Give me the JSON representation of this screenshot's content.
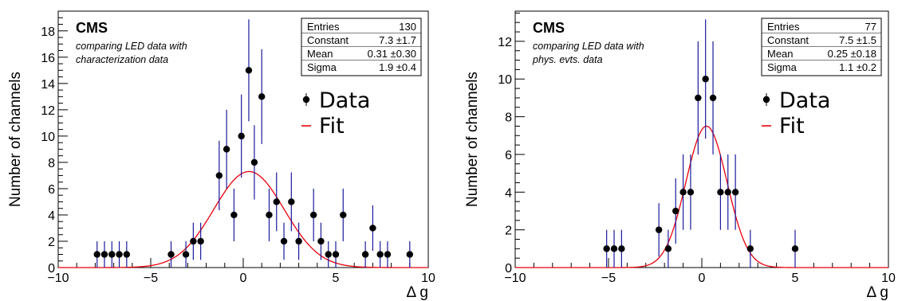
{
  "chart_data": [
    {
      "type": "scatter",
      "xlabel": "Δ g",
      "ylabel": "Number of channels",
      "xlim": [
        -10,
        10
      ],
      "ylim": [
        0,
        19.5
      ],
      "xticks": [
        -10,
        -5,
        0,
        5,
        10
      ],
      "yticks": [
        0,
        2,
        4,
        6,
        8,
        10,
        12,
        14,
        16,
        18
      ],
      "experiment": "CMS",
      "subtitle_lines": [
        "comparing LED data with",
        "characterization data"
      ],
      "stats": [
        {
          "label": "Entries",
          "value": "130"
        },
        {
          "label": "Constant",
          "value": "7.3 ±1.7"
        },
        {
          "label": "Mean",
          "value": "0.31 ±0.30"
        },
        {
          "label": "Sigma",
          "value": "1.9 ±0.4"
        }
      ],
      "legend": [
        "Data",
        "Fit"
      ],
      "colors": {
        "data": "#000000",
        "error": "#1a1a9e",
        "fit": "#e8000b"
      },
      "fit": {
        "constant": 7.3,
        "mean": 0.31,
        "sigma": 1.9
      },
      "points": [
        {
          "x": -7.9,
          "y": 1
        },
        {
          "x": -7.5,
          "y": 1
        },
        {
          "x": -7.1,
          "y": 1
        },
        {
          "x": -6.7,
          "y": 1
        },
        {
          "x": -6.3,
          "y": 1
        },
        {
          "x": -3.9,
          "y": 1
        },
        {
          "x": -3.1,
          "y": 1
        },
        {
          "x": -2.7,
          "y": 2
        },
        {
          "x": -2.3,
          "y": 2
        },
        {
          "x": -1.3,
          "y": 7
        },
        {
          "x": -0.9,
          "y": 9
        },
        {
          "x": -0.5,
          "y": 4
        },
        {
          "x": -0.1,
          "y": 10
        },
        {
          "x": 0.3,
          "y": 15
        },
        {
          "x": 0.6,
          "y": 8
        },
        {
          "x": 1.0,
          "y": 13
        },
        {
          "x": 1.4,
          "y": 4
        },
        {
          "x": 1.8,
          "y": 5
        },
        {
          "x": 2.2,
          "y": 2
        },
        {
          "x": 2.6,
          "y": 5
        },
        {
          "x": 3.0,
          "y": 2
        },
        {
          "x": 3.8,
          "y": 4
        },
        {
          "x": 4.2,
          "y": 2
        },
        {
          "x": 4.6,
          "y": 1
        },
        {
          "x": 5.0,
          "y": 1
        },
        {
          "x": 5.4,
          "y": 4
        },
        {
          "x": 6.6,
          "y": 1
        },
        {
          "x": 7.0,
          "y": 3
        },
        {
          "x": 7.4,
          "y": 1
        },
        {
          "x": 7.8,
          "y": 1
        },
        {
          "x": 9.0,
          "y": 1
        }
      ]
    },
    {
      "type": "scatter",
      "xlabel": "Δ g",
      "ylabel": "Number of channels",
      "xlim": [
        -10,
        10
      ],
      "ylim": [
        0,
        13.6
      ],
      "xticks": [
        -10,
        -5,
        0,
        5,
        10
      ],
      "yticks": [
        0,
        2,
        4,
        6,
        8,
        10,
        12
      ],
      "experiment": "CMS",
      "subtitle_lines": [
        "comparing LED data with",
        "phys. evts. data"
      ],
      "stats": [
        {
          "label": "Entries",
          "value": "77"
        },
        {
          "label": "Constant",
          "value": "7.5 ±1.5"
        },
        {
          "label": "Mean",
          "value": "0.25 ±0.18"
        },
        {
          "label": "Sigma",
          "value": "1.1 ±0.2"
        }
      ],
      "legend": [
        "Data",
        "Fit"
      ],
      "colors": {
        "data": "#000000",
        "error": "#1a1a9e",
        "fit": "#e8000b"
      },
      "fit": {
        "constant": 7.5,
        "mean": 0.25,
        "sigma": 1.1
      },
      "points": [
        {
          "x": -5.1,
          "y": 1
        },
        {
          "x": -4.7,
          "y": 1
        },
        {
          "x": -4.3,
          "y": 1
        },
        {
          "x": -2.3,
          "y": 2
        },
        {
          "x": -1.8,
          "y": 1
        },
        {
          "x": -1.4,
          "y": 3
        },
        {
          "x": -1.0,
          "y": 4
        },
        {
          "x": -0.6,
          "y": 4
        },
        {
          "x": -0.2,
          "y": 9
        },
        {
          "x": 0.2,
          "y": 10
        },
        {
          "x": 0.6,
          "y": 9
        },
        {
          "x": 1.0,
          "y": 4
        },
        {
          "x": 1.4,
          "y": 4
        },
        {
          "x": 1.8,
          "y": 4
        },
        {
          "x": 2.6,
          "y": 1
        },
        {
          "x": 5.0,
          "y": 1
        }
      ]
    }
  ]
}
